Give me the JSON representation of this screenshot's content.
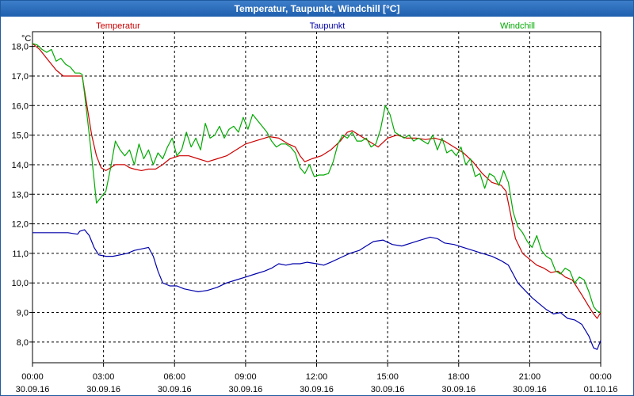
{
  "window": {
    "title": "Temperatur, Taupunkt, Windchill [°C]"
  },
  "chart_data": {
    "type": "line",
    "title": "Temperatur, Taupunkt, Windchill [°C]",
    "ylabel": "°C",
    "ylim": [
      7.3,
      18.5
    ],
    "yticks": [
      8.0,
      9.0,
      10.0,
      11.0,
      12.0,
      13.0,
      14.0,
      15.0,
      16.0,
      17.0,
      18.0
    ],
    "ytick_labels": [
      "8,0",
      "9,0",
      "10,0",
      "11,0",
      "12,0",
      "13,0",
      "14,0",
      "15,0",
      "16,0",
      "17,0",
      "18,0"
    ],
    "xlim": [
      0,
      24
    ],
    "xticks": [
      {
        "h": 0,
        "time": "00:00",
        "date": "30.09.16"
      },
      {
        "h": 3,
        "time": "03:00",
        "date": "30.09.16"
      },
      {
        "h": 6,
        "time": "06:00",
        "date": "30.09.16"
      },
      {
        "h": 9,
        "time": "09:00",
        "date": "30.09.16"
      },
      {
        "h": 12,
        "time": "12:00",
        "date": "30.09.16"
      },
      {
        "h": 15,
        "time": "15:00",
        "date": "30.09.16"
      },
      {
        "h": 18,
        "time": "18:00",
        "date": "30.09.16"
      },
      {
        "h": 21,
        "time": "21:00",
        "date": "30.09.16"
      },
      {
        "h": 24,
        "time": "00:00",
        "date": "01.10.16"
      }
    ],
    "grid": true,
    "legend": "top",
    "series": [
      {
        "name": "Temperatur",
        "color": "#cc0000",
        "points": [
          [
            0,
            18.1
          ],
          [
            0.3,
            17.9
          ],
          [
            0.6,
            17.6
          ],
          [
            1.0,
            17.2
          ],
          [
            1.3,
            17.0
          ],
          [
            1.6,
            17.0
          ],
          [
            1.9,
            17.0
          ],
          [
            2.1,
            17.0
          ],
          [
            2.3,
            16.0
          ],
          [
            2.5,
            15.0
          ],
          [
            2.7,
            14.3
          ],
          [
            2.9,
            13.9
          ],
          [
            3.1,
            13.8
          ],
          [
            3.3,
            13.9
          ],
          [
            3.5,
            14.0
          ],
          [
            3.7,
            14.0
          ],
          [
            3.9,
            14.0
          ],
          [
            4.1,
            13.9
          ],
          [
            4.3,
            13.85
          ],
          [
            4.6,
            13.8
          ],
          [
            4.9,
            13.85
          ],
          [
            5.2,
            13.85
          ],
          [
            5.5,
            14.0
          ],
          [
            5.8,
            14.2
          ],
          [
            6.2,
            14.3
          ],
          [
            6.6,
            14.3
          ],
          [
            7.0,
            14.2
          ],
          [
            7.4,
            14.1
          ],
          [
            7.8,
            14.2
          ],
          [
            8.2,
            14.3
          ],
          [
            8.6,
            14.5
          ],
          [
            9.0,
            14.7
          ],
          [
            9.4,
            14.8
          ],
          [
            9.8,
            14.9
          ],
          [
            10.0,
            14.95
          ],
          [
            10.4,
            14.9
          ],
          [
            10.8,
            14.7
          ],
          [
            11.1,
            14.6
          ],
          [
            11.3,
            14.3
          ],
          [
            11.5,
            14.1
          ],
          [
            11.8,
            14.2
          ],
          [
            12.2,
            14.3
          ],
          [
            12.6,
            14.5
          ],
          [
            13.0,
            14.8
          ],
          [
            13.3,
            15.1
          ],
          [
            13.5,
            15.15
          ],
          [
            13.8,
            15.0
          ],
          [
            14.2,
            14.8
          ],
          [
            14.6,
            14.6
          ],
          [
            15.0,
            14.9
          ],
          [
            15.4,
            15.0
          ],
          [
            15.8,
            14.9
          ],
          [
            16.2,
            14.9
          ],
          [
            16.6,
            14.85
          ],
          [
            17.0,
            14.9
          ],
          [
            17.4,
            14.8
          ],
          [
            17.8,
            14.6
          ],
          [
            18.2,
            14.4
          ],
          [
            18.6,
            14.1
          ],
          [
            19.0,
            13.7
          ],
          [
            19.4,
            13.4
          ],
          [
            19.8,
            13.3
          ],
          [
            20.0,
            13.1
          ],
          [
            20.2,
            12.3
          ],
          [
            20.4,
            11.5
          ],
          [
            20.7,
            11.0
          ],
          [
            21.0,
            10.8
          ],
          [
            21.3,
            10.6
          ],
          [
            21.6,
            10.5
          ],
          [
            21.9,
            10.35
          ],
          [
            22.2,
            10.4
          ],
          [
            22.5,
            10.2
          ],
          [
            22.8,
            10.1
          ],
          [
            23.2,
            9.6
          ],
          [
            23.5,
            9.2
          ],
          [
            23.7,
            8.95
          ],
          [
            23.85,
            8.8
          ],
          [
            24.0,
            9.0
          ]
        ]
      },
      {
        "name": "Taupunkt",
        "color": "#0000aa",
        "points": [
          [
            0,
            11.7
          ],
          [
            0.5,
            11.7
          ],
          [
            1.0,
            11.7
          ],
          [
            1.5,
            11.7
          ],
          [
            1.9,
            11.65
          ],
          [
            2.0,
            11.75
          ],
          [
            2.2,
            11.8
          ],
          [
            2.4,
            11.6
          ],
          [
            2.6,
            11.2
          ],
          [
            2.8,
            10.95
          ],
          [
            3.1,
            10.9
          ],
          [
            3.4,
            10.9
          ],
          [
            3.7,
            10.95
          ],
          [
            4.0,
            11.0
          ],
          [
            4.3,
            11.1
          ],
          [
            4.6,
            11.15
          ],
          [
            4.9,
            11.2
          ],
          [
            5.1,
            10.9
          ],
          [
            5.3,
            10.4
          ],
          [
            5.5,
            10.0
          ],
          [
            5.8,
            9.9
          ],
          [
            6.1,
            9.9
          ],
          [
            6.4,
            9.8
          ],
          [
            6.7,
            9.75
          ],
          [
            7.0,
            9.7
          ],
          [
            7.4,
            9.75
          ],
          [
            7.8,
            9.85
          ],
          [
            8.2,
            10.0
          ],
          [
            8.6,
            10.1
          ],
          [
            9.0,
            10.2
          ],
          [
            9.4,
            10.3
          ],
          [
            9.8,
            10.4
          ],
          [
            10.1,
            10.5
          ],
          [
            10.4,
            10.65
          ],
          [
            10.7,
            10.6
          ],
          [
            11.0,
            10.65
          ],
          [
            11.3,
            10.65
          ],
          [
            11.6,
            10.7
          ],
          [
            12.0,
            10.65
          ],
          [
            12.3,
            10.6
          ],
          [
            12.6,
            10.7
          ],
          [
            13.0,
            10.85
          ],
          [
            13.4,
            11.0
          ],
          [
            13.8,
            11.1
          ],
          [
            14.0,
            11.2
          ],
          [
            14.4,
            11.4
          ],
          [
            14.8,
            11.45
          ],
          [
            15.2,
            11.3
          ],
          [
            15.6,
            11.25
          ],
          [
            16.0,
            11.35
          ],
          [
            16.4,
            11.45
          ],
          [
            16.8,
            11.55
          ],
          [
            17.1,
            11.5
          ],
          [
            17.4,
            11.35
          ],
          [
            17.8,
            11.3
          ],
          [
            18.2,
            11.2
          ],
          [
            18.6,
            11.1
          ],
          [
            19.0,
            11.0
          ],
          [
            19.4,
            10.9
          ],
          [
            19.8,
            10.75
          ],
          [
            20.1,
            10.6
          ],
          [
            20.3,
            10.3
          ],
          [
            20.5,
            10.0
          ],
          [
            20.8,
            9.75
          ],
          [
            21.1,
            9.5
          ],
          [
            21.4,
            9.3
          ],
          [
            21.7,
            9.1
          ],
          [
            22.0,
            8.95
          ],
          [
            22.3,
            9.0
          ],
          [
            22.6,
            8.8
          ],
          [
            22.9,
            8.75
          ],
          [
            23.2,
            8.6
          ],
          [
            23.5,
            8.2
          ],
          [
            23.7,
            7.8
          ],
          [
            23.85,
            7.75
          ],
          [
            24.0,
            8.05
          ]
        ]
      },
      {
        "name": "Windchill",
        "color": "#00aa00",
        "points": [
          [
            0,
            18.1
          ],
          [
            0.2,
            18.05
          ],
          [
            0.4,
            17.9
          ],
          [
            0.6,
            17.8
          ],
          [
            0.8,
            17.9
          ],
          [
            1.0,
            17.5
          ],
          [
            1.2,
            17.6
          ],
          [
            1.4,
            17.4
          ],
          [
            1.6,
            17.3
          ],
          [
            1.8,
            17.1
          ],
          [
            2.0,
            17.1
          ],
          [
            2.1,
            17.05
          ],
          [
            2.2,
            16.4
          ],
          [
            2.4,
            15.0
          ],
          [
            2.6,
            13.5
          ],
          [
            2.7,
            12.7
          ],
          [
            2.9,
            12.9
          ],
          [
            3.1,
            13.1
          ],
          [
            3.3,
            13.9
          ],
          [
            3.5,
            14.8
          ],
          [
            3.7,
            14.5
          ],
          [
            3.9,
            14.3
          ],
          [
            4.1,
            14.5
          ],
          [
            4.3,
            14.0
          ],
          [
            4.5,
            14.7
          ],
          [
            4.7,
            14.2
          ],
          [
            4.9,
            14.5
          ],
          [
            5.1,
            14.0
          ],
          [
            5.3,
            14.4
          ],
          [
            5.5,
            14.2
          ],
          [
            5.7,
            14.6
          ],
          [
            5.9,
            14.9
          ],
          [
            6.1,
            14.3
          ],
          [
            6.3,
            14.5
          ],
          [
            6.5,
            15.1
          ],
          [
            6.7,
            14.6
          ],
          [
            6.9,
            14.9
          ],
          [
            7.1,
            14.5
          ],
          [
            7.3,
            15.4
          ],
          [
            7.5,
            14.9
          ],
          [
            7.7,
            15.0
          ],
          [
            7.9,
            15.3
          ],
          [
            8.1,
            14.9
          ],
          [
            8.3,
            15.2
          ],
          [
            8.5,
            15.3
          ],
          [
            8.7,
            15.1
          ],
          [
            8.9,
            15.6
          ],
          [
            9.1,
            15.2
          ],
          [
            9.3,
            15.7
          ],
          [
            9.5,
            15.5
          ],
          [
            9.7,
            15.3
          ],
          [
            9.9,
            15.1
          ],
          [
            10.1,
            14.8
          ],
          [
            10.3,
            14.6
          ],
          [
            10.5,
            14.7
          ],
          [
            10.7,
            14.7
          ],
          [
            10.9,
            14.6
          ],
          [
            11.1,
            14.4
          ],
          [
            11.3,
            13.9
          ],
          [
            11.5,
            13.7
          ],
          [
            11.7,
            14.0
          ],
          [
            11.9,
            13.6
          ],
          [
            12.1,
            13.65
          ],
          [
            12.3,
            13.65
          ],
          [
            12.5,
            13.7
          ],
          [
            12.7,
            14.1
          ],
          [
            12.9,
            14.7
          ],
          [
            13.1,
            15.0
          ],
          [
            13.3,
            14.9
          ],
          [
            13.5,
            15.1
          ],
          [
            13.7,
            14.8
          ],
          [
            13.9,
            14.8
          ],
          [
            14.1,
            14.9
          ],
          [
            14.3,
            14.6
          ],
          [
            14.5,
            14.7
          ],
          [
            14.7,
            15.2
          ],
          [
            14.9,
            16.0
          ],
          [
            15.1,
            15.7
          ],
          [
            15.3,
            15.1
          ],
          [
            15.5,
            15.0
          ],
          [
            15.7,
            14.9
          ],
          [
            15.9,
            15.0
          ],
          [
            16.1,
            14.8
          ],
          [
            16.3,
            14.9
          ],
          [
            16.5,
            14.8
          ],
          [
            16.7,
            14.7
          ],
          [
            16.9,
            15.0
          ],
          [
            17.1,
            14.5
          ],
          [
            17.3,
            14.9
          ],
          [
            17.5,
            14.4
          ],
          [
            17.7,
            14.5
          ],
          [
            17.9,
            14.3
          ],
          [
            18.1,
            14.6
          ],
          [
            18.3,
            14.0
          ],
          [
            18.5,
            14.2
          ],
          [
            18.7,
            13.6
          ],
          [
            18.9,
            13.7
          ],
          [
            19.1,
            13.2
          ],
          [
            19.3,
            13.7
          ],
          [
            19.5,
            13.6
          ],
          [
            19.7,
            13.3
          ],
          [
            19.9,
            13.8
          ],
          [
            20.1,
            13.4
          ],
          [
            20.3,
            12.4
          ],
          [
            20.5,
            11.9
          ],
          [
            20.7,
            11.7
          ],
          [
            20.9,
            11.4
          ],
          [
            21.1,
            11.2
          ],
          [
            21.3,
            11.6
          ],
          [
            21.5,
            11.1
          ],
          [
            21.7,
            10.9
          ],
          [
            21.9,
            10.8
          ],
          [
            22.1,
            10.4
          ],
          [
            22.3,
            10.3
          ],
          [
            22.5,
            10.5
          ],
          [
            22.7,
            10.4
          ],
          [
            22.9,
            10.0
          ],
          [
            23.1,
            10.2
          ],
          [
            23.3,
            10.1
          ],
          [
            23.5,
            9.7
          ],
          [
            23.7,
            9.2
          ],
          [
            23.85,
            9.05
          ],
          [
            24.0,
            9.0
          ]
        ]
      }
    ]
  }
}
